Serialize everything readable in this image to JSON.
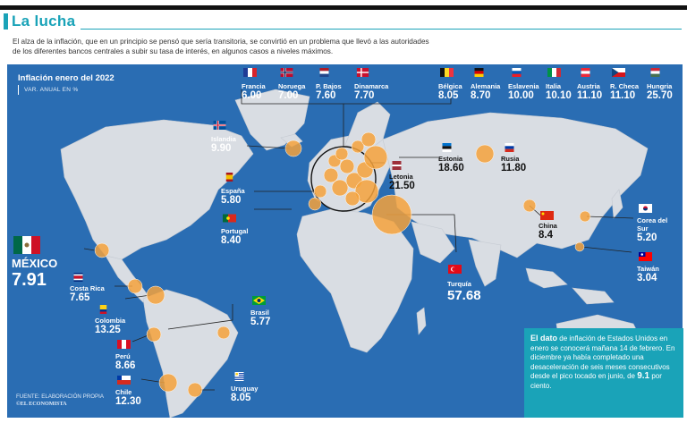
{
  "header": {
    "title": "La lucha",
    "subtitle": "El alza de la inflación, que en un principio se pensó que sería transitoria, se convirtió en un problema que llevó a las autoridades de los diferentes bancos centrales a subir su tasa de interés, en algunos casos a niveles máximos."
  },
  "legend": {
    "title": "Inflación enero del 2022",
    "subtitle": "VAR. ANUAL EN %"
  },
  "countries": [
    {
      "name": "Francia",
      "value": "6.00",
      "flag": "france"
    },
    {
      "name": "Noruega",
      "value": "7.00",
      "flag": "norway"
    },
    {
      "name": "P. Bajos",
      "value": "7.60",
      "flag": "netherlands"
    },
    {
      "name": "Dinamarca",
      "value": "7.70",
      "flag": "denmark"
    },
    {
      "name": "Bélgica",
      "value": "8.05",
      "flag": "belgium"
    },
    {
      "name": "Alemania",
      "value": "8.70",
      "flag": "germany"
    },
    {
      "name": "Eslavenia",
      "value": "10.00",
      "flag": "slovenia"
    },
    {
      "name": "Italia",
      "value": "10.10",
      "flag": "italy"
    },
    {
      "name": "Austria",
      "value": "11.10",
      "flag": "austria"
    },
    {
      "name": "R. Checa",
      "value": "11.10",
      "flag": "czech"
    },
    {
      "name": "Hungria",
      "value": "25.70",
      "flag": "hungary"
    },
    {
      "name": "Islandia",
      "value": "9.90",
      "flag": "iceland"
    },
    {
      "name": "España",
      "value": "5.80",
      "flag": "spain"
    },
    {
      "name": "Portugal",
      "value": "8.40",
      "flag": "portugal"
    },
    {
      "name": "Estonia",
      "value": "18.60",
      "flag": "estonia"
    },
    {
      "name": "Letonia",
      "value": "21.50",
      "flag": "latvia"
    },
    {
      "name": "Rusia",
      "value": "11.80",
      "flag": "russia"
    },
    {
      "name": "China",
      "value": "8.4",
      "flag": "china"
    },
    {
      "name": "Corea del Sur",
      "value": "5.20",
      "flag": "korea"
    },
    {
      "name": "Taiwán",
      "value": "3.04",
      "flag": "taiwan"
    },
    {
      "name": "Turquía",
      "value": "57.68",
      "flag": "turkey"
    },
    {
      "name": "MÉXICO",
      "value": "7.91",
      "flag": "mexico"
    },
    {
      "name": "Costa Rica",
      "value": "7.65",
      "flag": "costarica"
    },
    {
      "name": "Colombia",
      "value": "13.25",
      "flag": "colombia"
    },
    {
      "name": "Brasil",
      "value": "5.77",
      "flag": "brazil"
    },
    {
      "name": "Perú",
      "value": "8.66",
      "flag": "peru"
    },
    {
      "name": "Chile",
      "value": "12.30",
      "flag": "chile"
    },
    {
      "name": "Uruguay",
      "value": "8.05",
      "flag": "uruguay"
    }
  ],
  "note": {
    "lead": "El dato",
    "text_1": " de inflación de Estados Unidos en enero se conocerá mañana 14 de febrero. En diciembre ya había completado una desaceleración de seis meses consecutivos desde el pico tocado en junio, de ",
    "peak": "9.1",
    "text_2": " por ciento."
  },
  "source": {
    "line1": "FUENTE: ELABORACIÓN PROPIA",
    "brand": "©EL ECONOMISTA"
  },
  "colors": {
    "accent": "#1aa3b8",
    "ocean": "#2a6db3",
    "land": "#d9dde3",
    "bubble": "#f4a23c"
  }
}
